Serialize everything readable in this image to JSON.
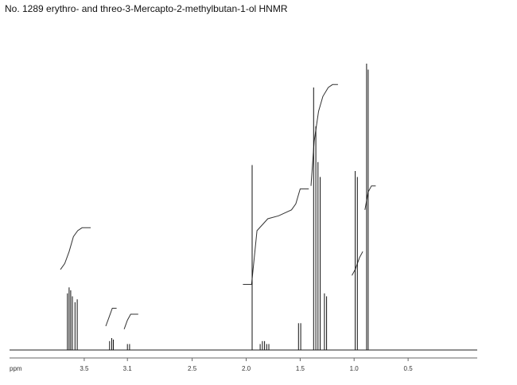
{
  "title": "No. 1289 erythro- and threo-3-Mercapto-2-methylbutan-1-ol HNMR",
  "chart_data": {
    "type": "line",
    "title": "No. 1289 erythro- and threo-3-Mercapto-2-methylbutan-1-ol HNMR",
    "xlabel": "ppm",
    "ylabel": "",
    "x_reversed": true,
    "xlim": [
      4.28,
      -0.14
    ],
    "ylim": [
      0,
      1
    ],
    "grid": false,
    "x_ticks": [
      {
        "value": 3.5,
        "label": "3.5"
      },
      {
        "value": 3.1,
        "label": "3.1"
      },
      {
        "value": 2.5,
        "label": "2.5"
      },
      {
        "value": 2.0,
        "label": "2.0"
      },
      {
        "value": 1.5,
        "label": "1.5"
      },
      {
        "value": 1.0,
        "label": "1.0"
      },
      {
        "value": 0.5,
        "label": "0.5"
      }
    ],
    "series": [
      {
        "kind": "peaks",
        "points": [
          {
            "x": 3.655,
            "y": 0.19
          },
          {
            "x": 3.64,
            "y": 0.21
          },
          {
            "x": 3.625,
            "y": 0.2
          },
          {
            "x": 3.61,
            "y": 0.18
          },
          {
            "x": 3.585,
            "y": 0.16
          },
          {
            "x": 3.565,
            "y": 0.17
          },
          {
            "x": 3.265,
            "y": 0.03
          },
          {
            "x": 3.245,
            "y": 0.04
          },
          {
            "x": 3.23,
            "y": 0.035
          },
          {
            "x": 3.1,
            "y": 0.02
          },
          {
            "x": 3.08,
            "y": 0.02
          },
          {
            "x": 1.945,
            "y": 0.62
          },
          {
            "x": 1.87,
            "y": 0.02
          },
          {
            "x": 1.85,
            "y": 0.03
          },
          {
            "x": 1.83,
            "y": 0.03
          },
          {
            "x": 1.81,
            "y": 0.02
          },
          {
            "x": 1.79,
            "y": 0.02
          },
          {
            "x": 1.515,
            "y": 0.09
          },
          {
            "x": 1.495,
            "y": 0.09
          },
          {
            "x": 1.375,
            "y": 0.88
          },
          {
            "x": 1.355,
            "y": 0.75
          },
          {
            "x": 1.335,
            "y": 0.63
          },
          {
            "x": 1.315,
            "y": 0.58
          },
          {
            "x": 1.275,
            "y": 0.19
          },
          {
            "x": 1.255,
            "y": 0.18
          },
          {
            "x": 0.99,
            "y": 0.6
          },
          {
            "x": 0.97,
            "y": 0.58
          },
          {
            "x": 0.885,
            "y": 0.96
          },
          {
            "x": 0.87,
            "y": 0.94
          }
        ]
      },
      {
        "kind": "integral",
        "segments": [
          {
            "x": [
              3.72,
              3.68,
              3.64,
              3.6,
              3.56,
              3.52,
              3.44
            ],
            "y": [
              0.27,
              0.29,
              0.33,
              0.38,
              0.4,
              0.41,
              0.41
            ]
          },
          {
            "x": [
              3.3,
              3.27,
              3.24,
              3.2
            ],
            "y": [
              0.08,
              0.11,
              0.14,
              0.14
            ]
          },
          {
            "x": [
              3.13,
              3.1,
              3.07,
              3.0
            ],
            "y": [
              0.07,
              0.1,
              0.12,
              0.12
            ]
          },
          {
            "x": [
              2.03,
              1.95,
              1.9,
              1.8,
              1.7,
              1.58,
              1.54,
              1.5,
              1.42
            ],
            "y": [
              0.22,
              0.22,
              0.4,
              0.44,
              0.45,
              0.47,
              0.49,
              0.54,
              0.54
            ]
          },
          {
            "x": [
              1.4,
              1.37,
              1.33,
              1.29,
              1.24,
              1.2,
              1.15
            ],
            "y": [
              0.55,
              0.7,
              0.8,
              0.85,
              0.88,
              0.89,
              0.89
            ]
          },
          {
            "x": [
              1.02,
              0.99,
              0.95,
              0.92
            ],
            "y": [
              0.25,
              0.27,
              0.31,
              0.33
            ]
          },
          {
            "x": [
              0.9,
              0.87,
              0.84,
              0.8
            ],
            "y": [
              0.47,
              0.53,
              0.55,
              0.55
            ]
          }
        ]
      }
    ]
  }
}
